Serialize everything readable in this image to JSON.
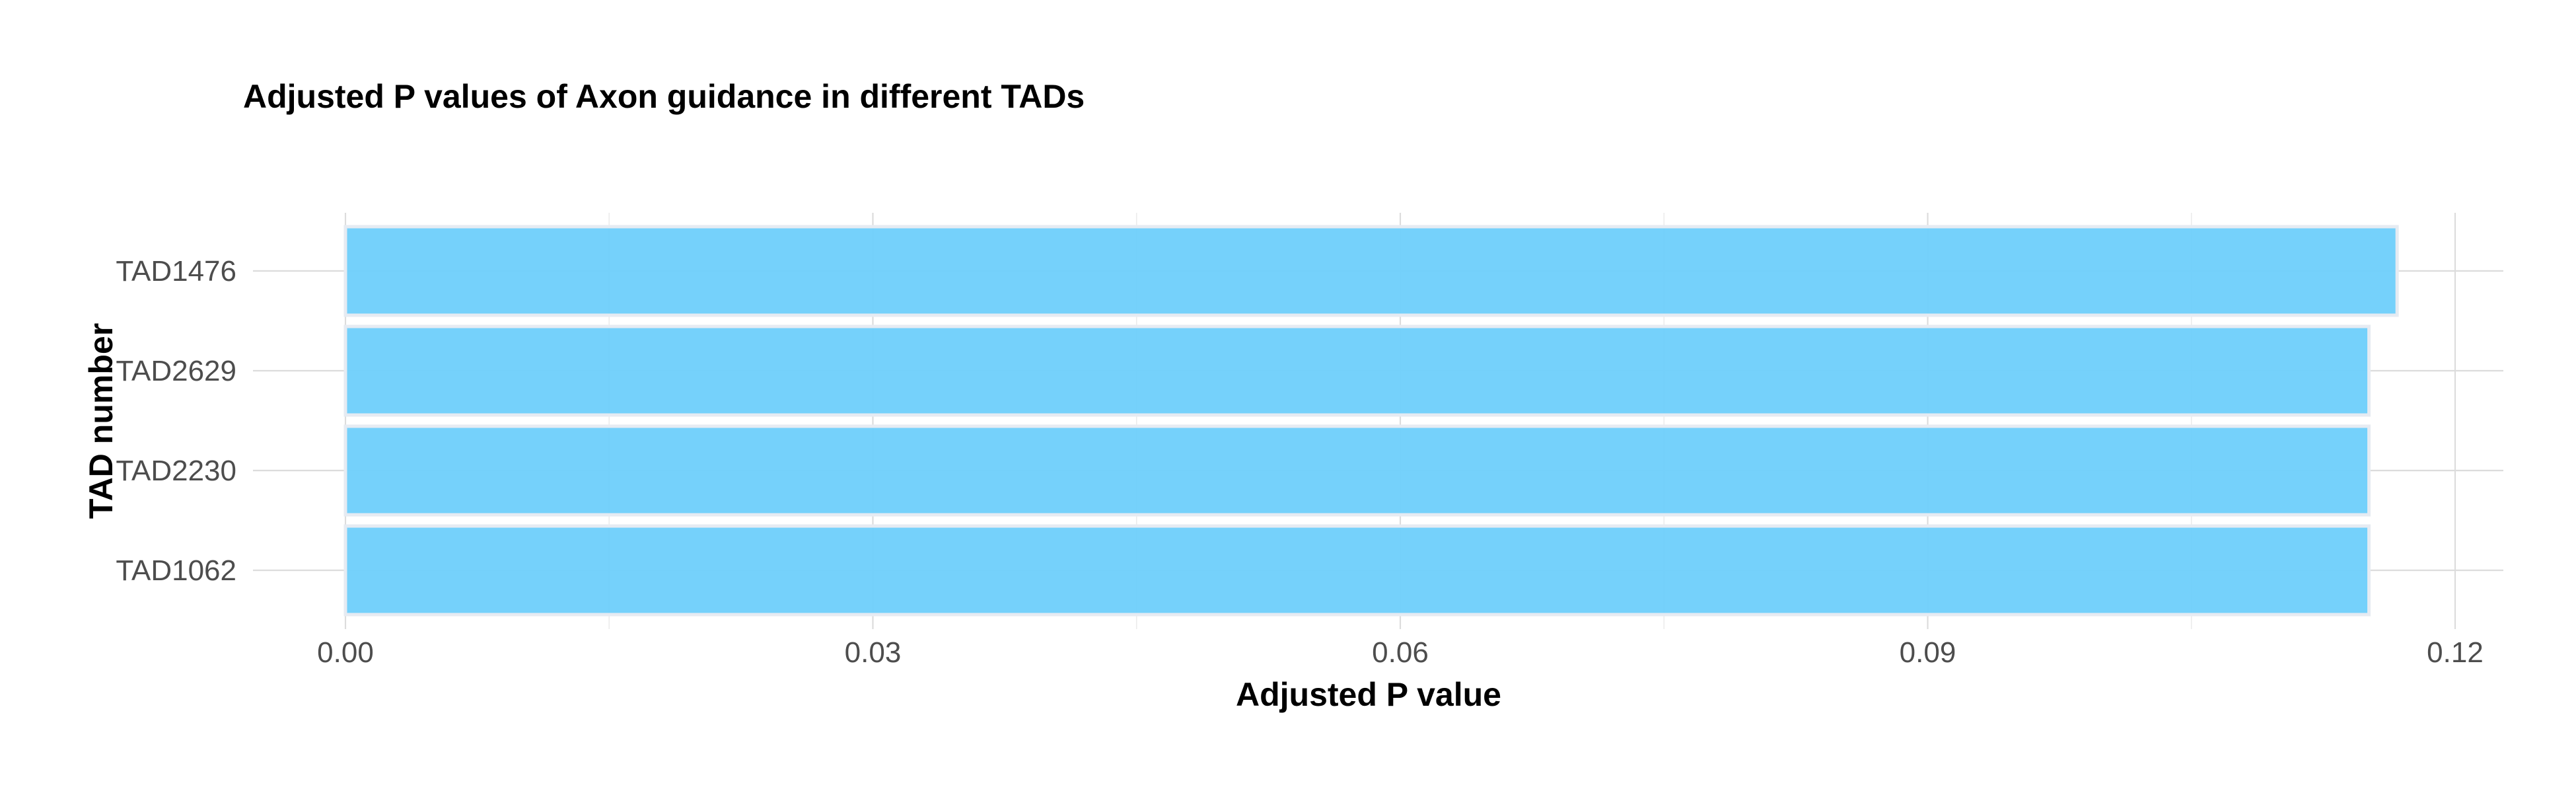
{
  "chart_data": {
    "type": "bar",
    "orientation": "horizontal",
    "title": "Adjusted P values of Axon guidance in different TADs",
    "xlabel": "Adjusted P value",
    "ylabel": "TAD number",
    "categories": [
      "TAD1476",
      "TAD2629",
      "TAD2230",
      "TAD1062"
    ],
    "values": [
      0.1167,
      0.1151,
      0.1151,
      0.1151
    ],
    "xlim": [
      0,
      0.1225
    ],
    "xticks": [
      "0.00",
      "0.03",
      "0.06",
      "0.09",
      "0.12"
    ],
    "xtick_values": [
      0,
      0.03,
      0.06,
      0.09,
      0.12
    ],
    "grid": true,
    "legend": "none",
    "bar_color": "#6ECFFB"
  }
}
